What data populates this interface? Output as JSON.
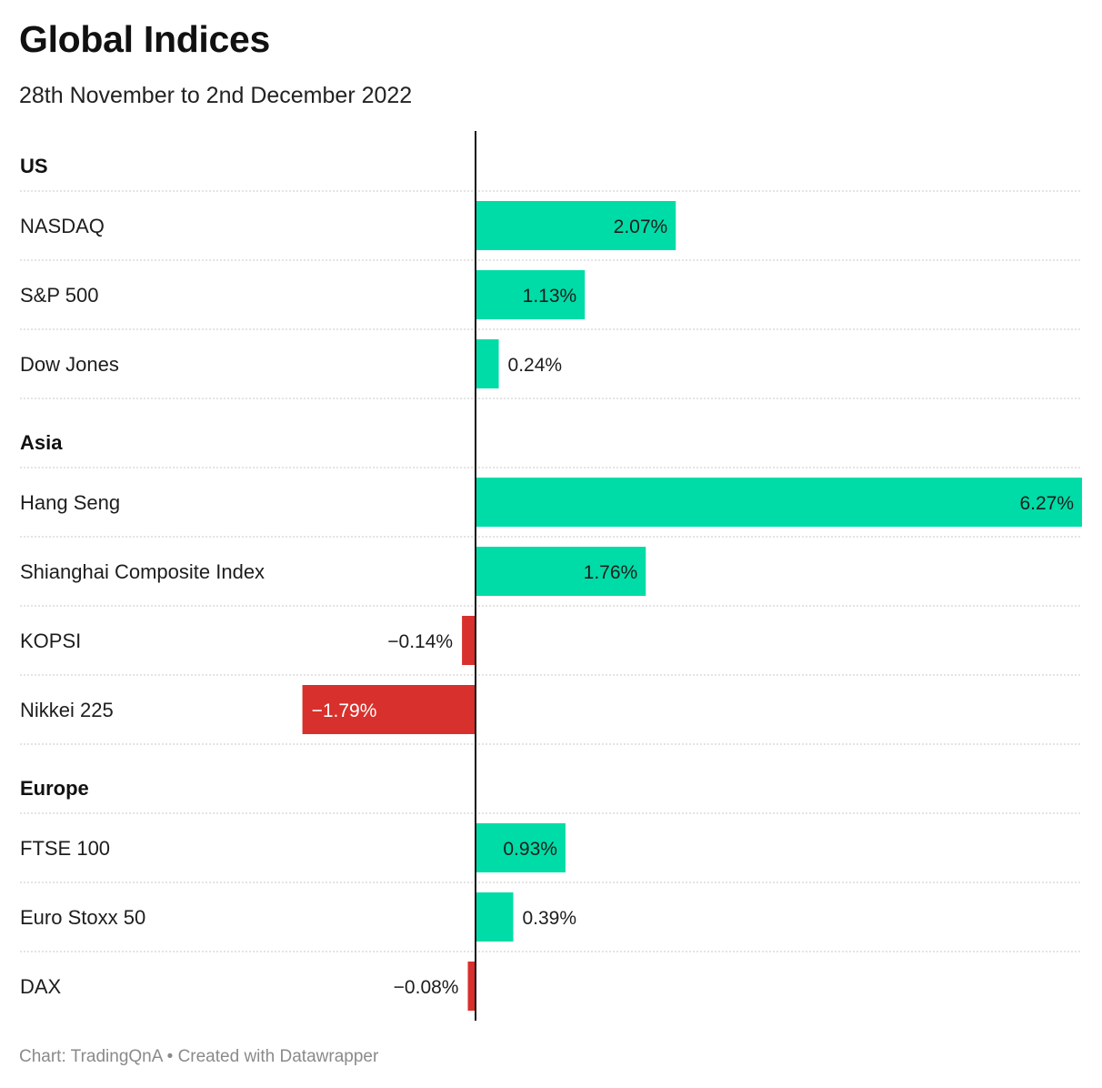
{
  "title": "Global Indices",
  "subtitle": "28th November to 2nd December 2022",
  "footer": "Chart: TradingQnA • Created with Datawrapper",
  "colors": {
    "positive": "#00dca7",
    "negative": "#d8302c",
    "axis": "#111111",
    "gridline": "#c8c8c8"
  },
  "chart_data": {
    "type": "bar",
    "orientation": "horizontal",
    "unit": "%",
    "xlim": [
      -2.86,
      6.27
    ],
    "grid": false,
    "groups": [
      {
        "name": "US",
        "items": [
          {
            "label": "NASDAQ",
            "value": 2.07,
            "value_label": "2.07%"
          },
          {
            "label": "S&P 500",
            "value": 1.13,
            "value_label": "1.13%"
          },
          {
            "label": "Dow Jones",
            "value": 0.24,
            "value_label": "0.24%"
          }
        ]
      },
      {
        "name": "Asia",
        "items": [
          {
            "label": "Hang Seng",
            "value": 6.27,
            "value_label": "6.27%"
          },
          {
            "label": "Shianghai Composite Index",
            "value": 1.76,
            "value_label": "1.76%"
          },
          {
            "label": "KOPSI",
            "value": -0.14,
            "value_label": "−0.14%"
          },
          {
            "label": "Nikkei 225",
            "value": -1.79,
            "value_label": "−1.79%"
          }
        ]
      },
      {
        "name": "Europe",
        "items": [
          {
            "label": "FTSE 100",
            "value": 0.93,
            "value_label": "0.93%"
          },
          {
            "label": "Euro Stoxx 50",
            "value": 0.39,
            "value_label": "0.39%"
          },
          {
            "label": "DAX",
            "value": -0.08,
            "value_label": "−0.08%"
          }
        ]
      }
    ]
  }
}
